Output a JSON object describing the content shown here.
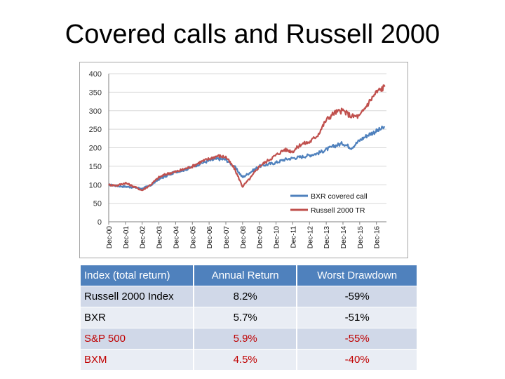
{
  "title": "Covered calls and Russell 2000",
  "chart_data": {
    "type": "line",
    "ylim": [
      0,
      400
    ],
    "yticks": [
      0,
      50,
      100,
      150,
      200,
      250,
      300,
      350,
      400
    ],
    "x_labels": [
      "Dec-00",
      "Dec-01",
      "Dec-02",
      "Dec-03",
      "Dec-04",
      "Dec-05",
      "Dec-06",
      "Dec-07",
      "Dec-08",
      "Dec-09",
      "Dec-10",
      "Dec-11",
      "Dec-12",
      "Dec-13",
      "Dec-14",
      "Dec-15",
      "Dec-16"
    ],
    "x_range": [
      0,
      16.6
    ],
    "legend_position": "bottom-right",
    "grid": true,
    "series": [
      {
        "name": "BXR covered call",
        "color": "#4f81bd",
        "x": [
          0,
          0.5,
          1,
          1.5,
          2,
          2.5,
          3,
          3.5,
          4,
          4.5,
          5,
          5.5,
          6,
          6.5,
          7,
          7.5,
          8,
          8.5,
          9,
          9.5,
          10,
          10.5,
          11,
          11.5,
          12,
          12.5,
          13,
          13.5,
          14,
          14.5,
          15,
          15.5,
          16,
          16.5
        ],
        "y": [
          100,
          97,
          95,
          93,
          90,
          98,
          115,
          125,
          135,
          140,
          148,
          158,
          165,
          170,
          168,
          150,
          120,
          135,
          150,
          155,
          160,
          168,
          172,
          175,
          180,
          185,
          195,
          205,
          212,
          200,
          220,
          235,
          245,
          255
        ]
      },
      {
        "name": "Russell 2000 TR",
        "color": "#c0504d",
        "x": [
          0,
          0.5,
          1,
          1.5,
          2,
          2.5,
          3,
          3.5,
          4,
          4.5,
          5,
          5.5,
          6,
          6.5,
          7,
          7.5,
          8,
          8.5,
          9,
          9.5,
          10,
          10.5,
          11,
          11.5,
          12,
          12.5,
          13,
          13.5,
          14,
          14.5,
          15,
          15.5,
          16,
          16.5
        ],
        "y": [
          100,
          98,
          105,
          95,
          85,
          100,
          120,
          130,
          135,
          142,
          150,
          162,
          170,
          178,
          175,
          145,
          95,
          120,
          150,
          165,
          180,
          195,
          190,
          210,
          215,
          235,
          275,
          295,
          300,
          285,
          285,
          320,
          350,
          365
        ]
      }
    ]
  },
  "table": {
    "headers": [
      "Index (total return)",
      "Annual Return",
      "Worst Drawdown"
    ],
    "rows": [
      {
        "name": "Russell 2000 Index",
        "annual": "8.2%",
        "drawdown": "-59%",
        "color": "#000000"
      },
      {
        "name": "BXR",
        "annual": "5.7%",
        "drawdown": "-51%",
        "color": "#000000"
      },
      {
        "name": "S&P 500",
        "annual": "5.9%",
        "drawdown": "-55%",
        "color": "#c00000"
      },
      {
        "name": "BXM",
        "annual": "4.5%",
        "drawdown": "-40%",
        "color": "#c00000"
      }
    ]
  }
}
